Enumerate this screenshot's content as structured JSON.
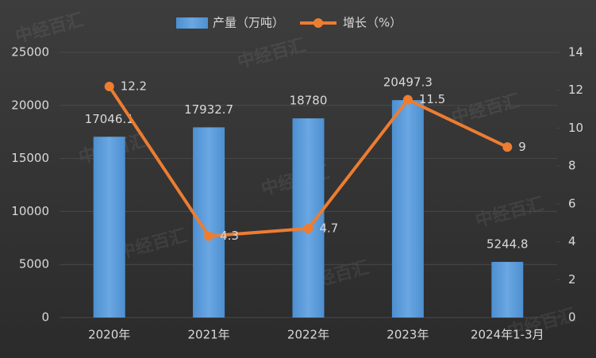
{
  "chart_data": {
    "type": "bar-line",
    "watermark": "中经百汇",
    "categories": [
      "2020年",
      "2021年",
      "2022年",
      "2023年",
      "2024年1-3月"
    ],
    "series": [
      {
        "name": "产量（万吨）",
        "type": "bar",
        "color": "#5b9bd5",
        "values": [
          17046.1,
          17932.7,
          18780,
          20497.3,
          5244.8
        ]
      },
      {
        "name": "增长（%）",
        "type": "line",
        "axis": "y2",
        "color": "#ed7d31",
        "values": [
          12.2,
          4.3,
          4.7,
          11.5,
          9
        ]
      }
    ],
    "ylim": [
      0,
      25000
    ],
    "yticks": [
      0,
      5000,
      10000,
      15000,
      20000,
      25000
    ],
    "y2lim": [
      0,
      14
    ],
    "y2ticks": [
      0,
      2,
      4,
      6,
      8,
      10,
      12,
      14
    ],
    "grid": true,
    "legend": "top"
  }
}
